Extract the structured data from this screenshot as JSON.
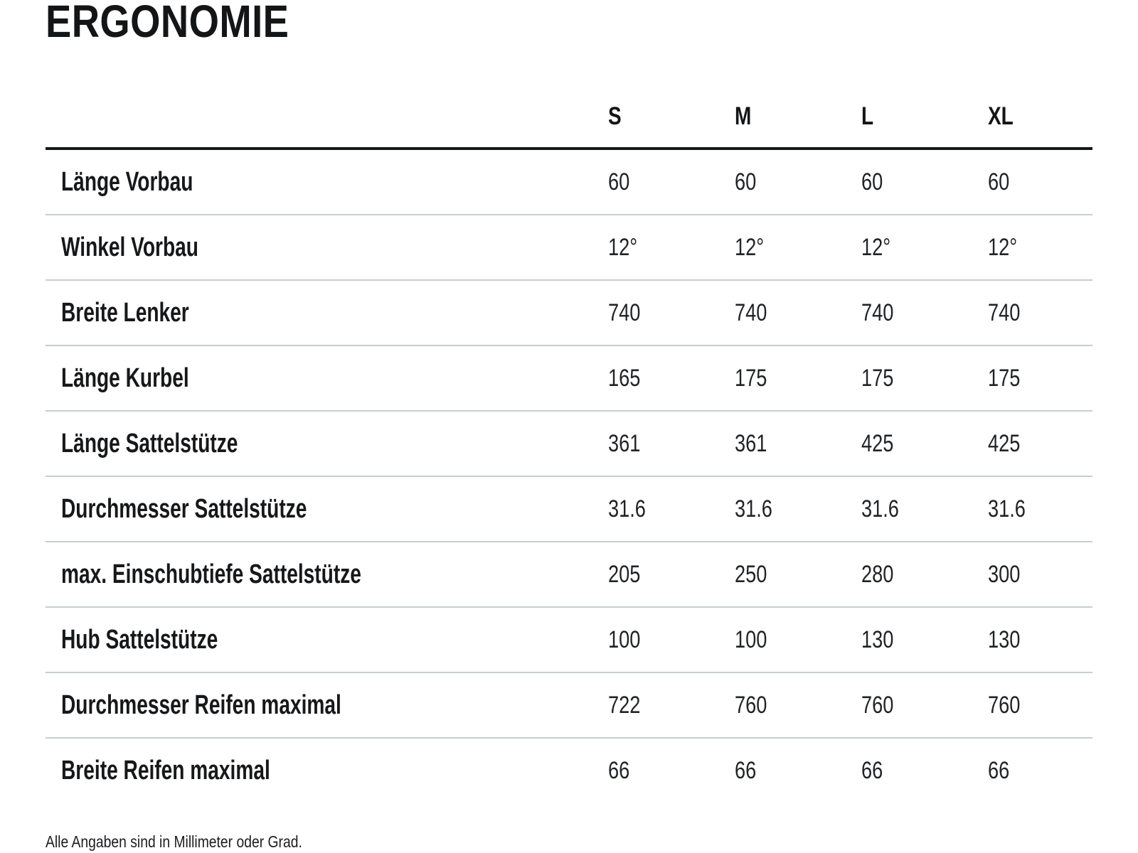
{
  "page": {
    "title": "ERGONOMIE",
    "footnote": "Alle Angaben sind in Millimeter oder Grad."
  },
  "table": {
    "columns": [
      "S",
      "M",
      "L",
      "XL"
    ],
    "rows": [
      {
        "label": "Länge Vorbau",
        "values": [
          "60",
          "60",
          "60",
          "60"
        ]
      },
      {
        "label": "Winkel Vorbau",
        "values": [
          "12°",
          "12°",
          "12°",
          "12°"
        ]
      },
      {
        "label": "Breite Lenker",
        "values": [
          "740",
          "740",
          "740",
          "740"
        ]
      },
      {
        "label": "Länge Kurbel",
        "values": [
          "165",
          "175",
          "175",
          "175"
        ]
      },
      {
        "label": "Länge Sattelstütze",
        "values": [
          "361",
          "361",
          "425",
          "425"
        ]
      },
      {
        "label": "Durchmesser Sattelstütze",
        "values": [
          "31.6",
          "31.6",
          "31.6",
          "31.6"
        ]
      },
      {
        "label": "max. Einschubtiefe Sattelstütze",
        "values": [
          "205",
          "250",
          "280",
          "300"
        ]
      },
      {
        "label": "Hub Sattelstütze",
        "values": [
          "100",
          "100",
          "130",
          "130"
        ]
      },
      {
        "label": "Durchmesser Reifen maximal",
        "values": [
          "722",
          "760",
          "760",
          "760"
        ]
      },
      {
        "label": "Breite Reifen maximal",
        "values": [
          "66",
          "66",
          "66",
          "66"
        ]
      }
    ]
  },
  "colors": {
    "background": "#ffffff",
    "text": "#17181a",
    "header_rule": "#17181a",
    "row_divider": "#c9cdd0"
  }
}
